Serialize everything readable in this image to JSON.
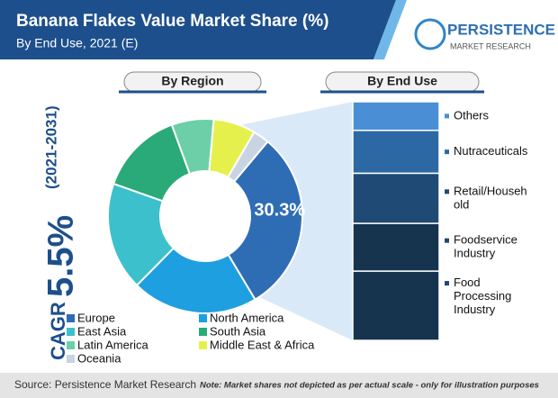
{
  "header": {
    "title": "Banana Flakes Value Market Share (%)",
    "subtitle": "By End Use, 2021 (E)"
  },
  "logo": {
    "name": "PERSISTENCE",
    "tagline": "MARKET RESEARCH"
  },
  "cagr": {
    "label": "CAGR",
    "value": "5.5%",
    "period": "(2021-2031)"
  },
  "footer": {
    "source": "Source: Persistence Market Research",
    "note": "Note: Market shares not depicted as per actual scale - only for illustration purposes"
  },
  "chart_data": [
    {
      "type": "donut",
      "title": "By Region",
      "categories": [
        "Europe",
        "North America",
        "East Asia",
        "South Asia",
        "Latin America",
        "Middle East & Africa",
        "Oceania"
      ],
      "values": [
        30.3,
        21,
        18,
        14,
        7,
        7,
        2.7
      ],
      "value_labels": [
        "30.3%",
        null,
        null,
        null,
        null,
        null,
        null
      ],
      "colors": [
        "#2e6db4",
        "#1e9fe0",
        "#3cc0cc",
        "#2aaa78",
        "#6ccfa8",
        "#e6f04c",
        "#c9d4e2"
      ]
    },
    {
      "type": "stacked-bar",
      "title": "By End Use",
      "categories": [
        [
          "Others"
        ],
        [
          "Nutraceuticals"
        ],
        [
          "Retail/Househ",
          "old"
        ],
        [
          "Foodservice",
          "Industry"
        ],
        [
          "Food",
          "Processing",
          "Industry"
        ]
      ],
      "values": [
        12,
        18,
        21,
        20,
        29
      ],
      "colors": [
        "#4a8fd6",
        "#2c69a4",
        "#1f4a75",
        "#17344f",
        "#17344f"
      ],
      "ylim": [
        0,
        100
      ]
    }
  ]
}
